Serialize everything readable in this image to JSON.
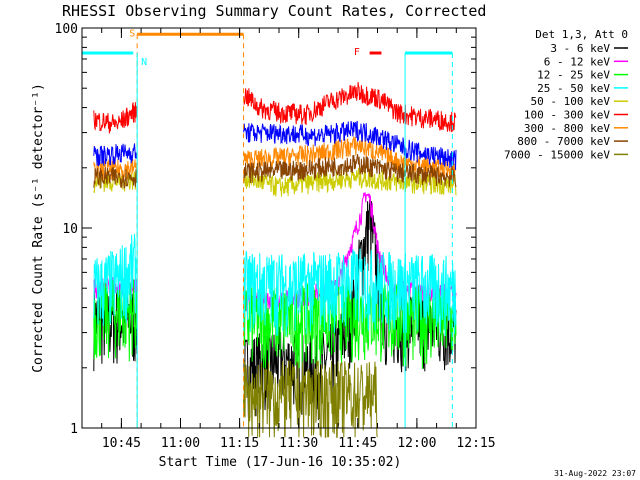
{
  "chart_data": {
    "type": "line",
    "title": "RHESSI Observing Summary Count Rates, Corrected",
    "ylabel": "Corrected Count Rate (s⁻¹ detector⁻¹)",
    "xlabel": "Start Time (17-Jun-16 10:35:02)",
    "y_scale": "log",
    "ylim": [
      1,
      100
    ],
    "xlim": [
      "10:35",
      "12:15"
    ],
    "x_ticks": [
      "10:45",
      "11:00",
      "11:15",
      "11:30",
      "11:45",
      "12:00",
      "12:15"
    ],
    "y_ticks": [
      "1",
      "10",
      "100"
    ],
    "legend_title": "Det 1,3, Att 0",
    "legend_position": "top-right",
    "timestamp": "31-Aug-2022 23:07",
    "data_gap": [
      "10:49",
      "11:16"
    ],
    "series": [
      {
        "name": "3 - 6 keV",
        "color": "#000000",
        "points": [
          [
            "10:38",
            3.5
          ],
          [
            "10:48",
            3.5
          ],
          [
            "11:16",
            2.0
          ],
          [
            "11:25",
            2.2
          ],
          [
            "11:35",
            2.0
          ],
          [
            "11:40",
            2.5
          ],
          [
            "11:44",
            4.0
          ],
          [
            "11:47",
            9.0
          ],
          [
            "11:48",
            11.0
          ],
          [
            "11:50",
            6.0
          ],
          [
            "11:52",
            3.5
          ],
          [
            "12:00",
            3.4
          ],
          [
            "12:05",
            3.3
          ],
          [
            "12:10",
            3.2
          ]
        ]
      },
      {
        "name": "6 - 12 keV",
        "color": "#ff00ff",
        "points": [
          [
            "10:38",
            5.0
          ],
          [
            "10:48",
            5.2
          ],
          [
            "11:16",
            4.3
          ],
          [
            "11:30",
            4.5
          ],
          [
            "11:40",
            5.0
          ],
          [
            "11:44",
            9.0
          ],
          [
            "11:46",
            12.0
          ],
          [
            "11:47",
            15.0
          ],
          [
            "11:48",
            14.0
          ],
          [
            "11:50",
            8.0
          ],
          [
            "11:53",
            5.0
          ],
          [
            "12:00",
            4.8
          ],
          [
            "12:10",
            4.7
          ]
        ]
      },
      {
        "name": "12 - 25 keV",
        "color": "#00ff00",
        "points": [
          [
            "10:38",
            3.8
          ],
          [
            "10:48",
            3.9
          ],
          [
            "11:16",
            3.5
          ],
          [
            "11:30",
            3.6
          ],
          [
            "11:45",
            3.8
          ],
          [
            "11:50",
            3.7
          ],
          [
            "12:00",
            3.6
          ],
          [
            "12:10",
            3.5
          ]
        ]
      },
      {
        "name": "25 - 50 keV",
        "color": "#00ffff",
        "points": [
          [
            "10:38",
            5.0
          ],
          [
            "10:44",
            5.5
          ],
          [
            "10:48",
            6.5
          ],
          [
            "11:16",
            5.3
          ],
          [
            "11:30",
            5.2
          ],
          [
            "11:45",
            5.5
          ],
          [
            "12:00",
            5.2
          ],
          [
            "12:10",
            5.0
          ]
        ]
      },
      {
        "name": "50 - 100 keV",
        "color": "#cccc00",
        "points": [
          [
            "10:38",
            17.0
          ],
          [
            "10:48",
            17.5
          ],
          [
            "11:16",
            18.0
          ],
          [
            "11:25",
            16.0
          ],
          [
            "11:35",
            17.0
          ],
          [
            "11:45",
            18.0
          ],
          [
            "11:55",
            17.0
          ],
          [
            "12:10",
            16.5
          ]
        ]
      },
      {
        "name": "100 - 300 keV",
        "color": "#ff0000",
        "points": [
          [
            "10:38",
            35.0
          ],
          [
            "10:44",
            33.0
          ],
          [
            "10:48",
            38.0
          ],
          [
            "11:16",
            47.0
          ],
          [
            "11:20",
            40.0
          ],
          [
            "11:25",
            38.0
          ],
          [
            "11:32",
            37.0
          ],
          [
            "11:38",
            43.0
          ],
          [
            "11:45",
            48.0
          ],
          [
            "11:50",
            45.0
          ],
          [
            "11:55",
            38.0
          ],
          [
            "12:00",
            36.0
          ],
          [
            "12:05",
            35.0
          ],
          [
            "12:10",
            34.0
          ]
        ]
      },
      {
        "name": "300 - 800 keV",
        "color": "#ff8800",
        "points": [
          [
            "10:38",
            19.5
          ],
          [
            "10:48",
            20.0
          ],
          [
            "11:16",
            22.0
          ],
          [
            "11:25",
            22.5
          ],
          [
            "11:35",
            23.5
          ],
          [
            "11:45",
            26.0
          ],
          [
            "11:50",
            24.0
          ],
          [
            "11:55",
            21.5
          ],
          [
            "12:05",
            20.0
          ],
          [
            "12:10",
            19.5
          ]
        ]
      },
      {
        "name": "800 - 7000 keV",
        "color": "#884400",
        "points": [
          [
            "10:38",
            18.0
          ],
          [
            "10:48",
            18.0
          ],
          [
            "11:16",
            19.0
          ],
          [
            "11:30",
            19.5
          ],
          [
            "11:45",
            21.0
          ],
          [
            "11:55",
            19.0
          ],
          [
            "12:10",
            18.0
          ]
        ]
      },
      {
        "name": "7000 - 15000 keV",
        "color": "#808000",
        "points": [
          [
            "11:16",
            1.5
          ],
          [
            "11:30",
            1.5
          ],
          [
            "11:45",
            1.5
          ],
          [
            "11:50",
            1.5
          ]
        ]
      },
      {
        "name": "",
        "color": "#0000ff",
        "points": [
          [
            "10:38",
            23.0
          ],
          [
            "10:48",
            24.0
          ],
          [
            "11:16",
            30.0
          ],
          [
            "11:25",
            30.0
          ],
          [
            "11:35",
            29.0
          ],
          [
            "11:45",
            31.0
          ],
          [
            "11:50",
            29.0
          ],
          [
            "11:55",
            26.0
          ],
          [
            "12:00",
            24.0
          ],
          [
            "12:10",
            22.0
          ]
        ]
      }
    ],
    "flags": [
      {
        "label": "S",
        "color": "#ff8800",
        "bar": [
          "10:49",
          "11:16"
        ],
        "y": 93,
        "label_at": "10:47",
        "boundaries_dashed": [
          "10:49",
          "11:16"
        ]
      },
      {
        "label": "N",
        "color": "#00ffff",
        "bars": [
          [
            "10:35",
            "10:48"
          ],
          [
            "11:57",
            "12:09"
          ]
        ],
        "y": 75,
        "label_at": "10:50",
        "boundaries_solid": [
          "10:49",
          "11:57"
        ],
        "boundaries_dashed": [
          "12:09"
        ]
      },
      {
        "label": "F",
        "color": "#ff0000",
        "bar": [
          "11:48",
          "11:51"
        ],
        "y": 75,
        "label_at": "11:44"
      }
    ]
  }
}
